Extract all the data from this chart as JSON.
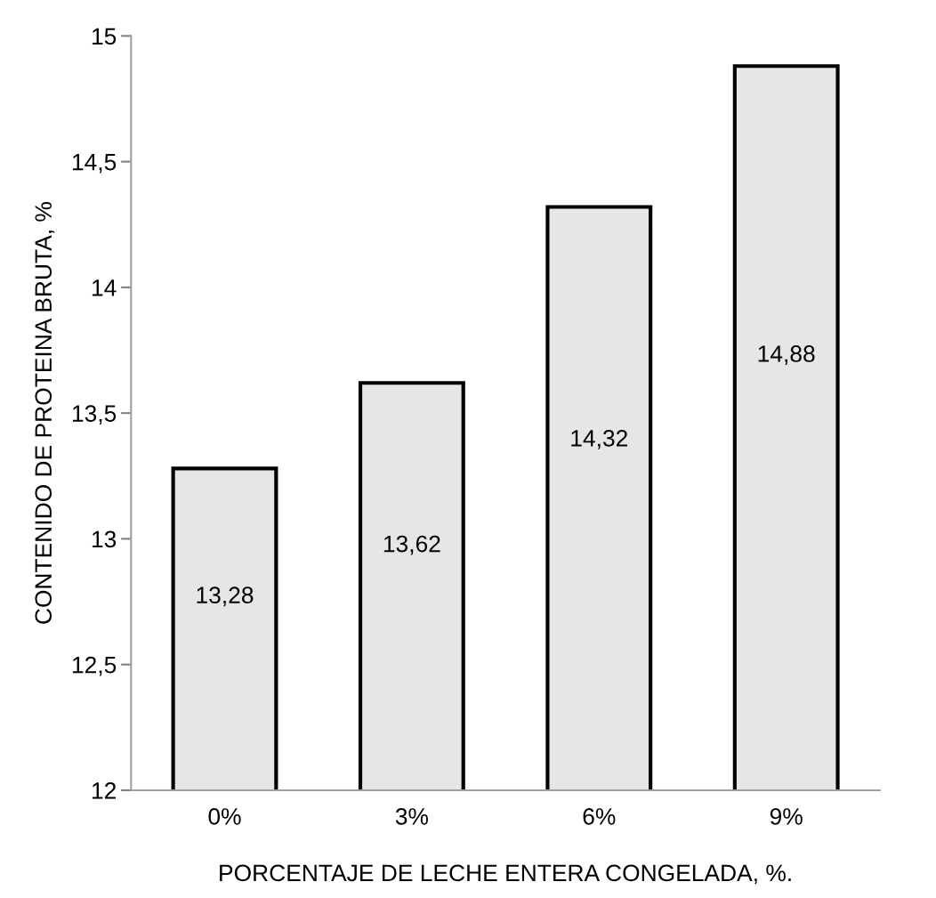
{
  "chart_data": {
    "type": "bar",
    "xlabel": "PORCENTAJE DE LECHE ENTERA CONGELADA, %.",
    "ylabel": "CONTENIDO DE PROTEINA BRUTA, %",
    "categories": [
      "0%",
      "3%",
      "6%",
      "9%"
    ],
    "values": [
      13.28,
      13.62,
      14.32,
      14.88
    ],
    "value_labels": [
      "13,28",
      "13,62",
      "14,32",
      "14,88"
    ],
    "color": "#e6e6e6",
    "ylim": [
      12,
      15
    ],
    "yticks": [
      12,
      {
        "value": 12.5,
        "label": "12,5"
      },
      13,
      {
        "value": 13.5,
        "label": "13,5"
      },
      14,
      {
        "value": 14.5,
        "label": "14,5"
      },
      15
    ],
    "grid": false,
    "legend": false
  }
}
